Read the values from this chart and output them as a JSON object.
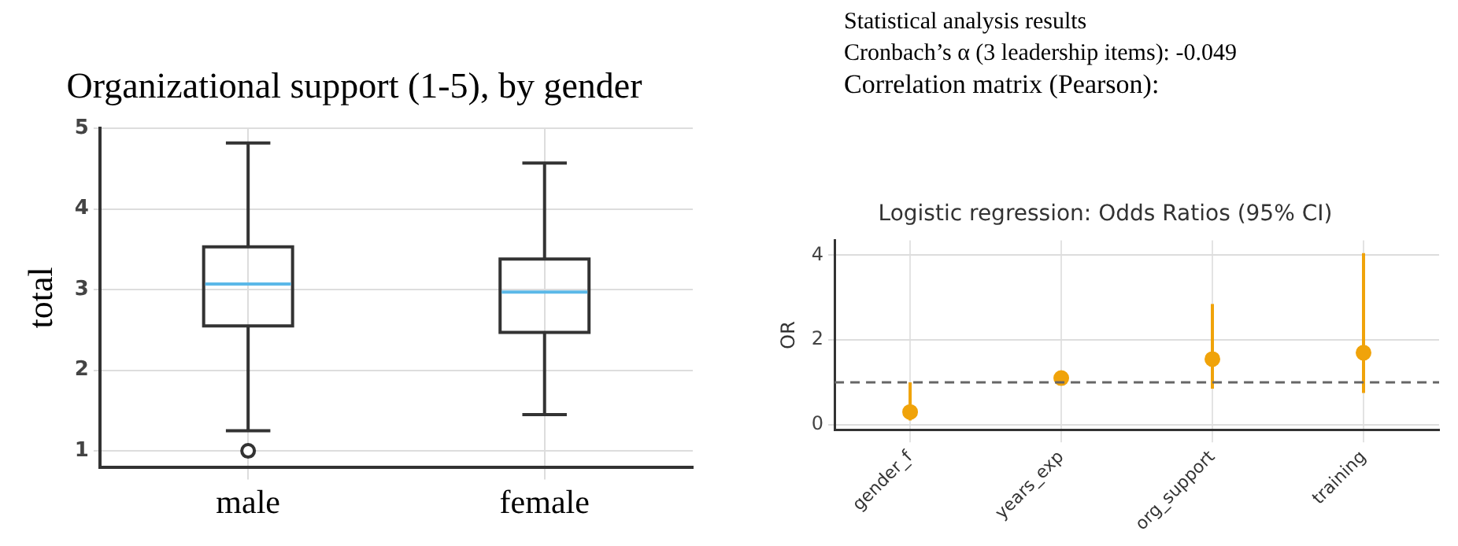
{
  "chart_data": [
    {
      "type": "box",
      "title": "Organizational support (1-5), by gender",
      "ylabel": "total",
      "categories": [
        "male",
        "female"
      ],
      "series": [
        {
          "color": "#333333",
          "boxes": [
            {
              "low": 1.25,
              "q1": 2.55,
              "median": 3.07,
              "q3": 3.53,
              "high": 4.82,
              "outliers": [
                1.0
              ]
            },
            {
              "low": 1.45,
              "q1": 2.47,
              "median": 2.97,
              "q3": 3.38,
              "high": 4.57
            }
          ]
        }
      ],
      "ylim": [
        0.8,
        5
      ],
      "yticks": [
        1,
        2,
        3,
        4,
        5
      ],
      "grid": true,
      "legend": false,
      "marker": "circle"
    },
    {
      "type": "other",
      "title": "Statistical analysis results",
      "annotations": [
        "Cronbach’s α (3 leadership items): -0.049",
        "Correlation matrix (Pearson):"
      ]
    },
    {
      "type": "scatter",
      "title": "Logistic regression: Odds Ratios (95% CI)",
      "ylabel": "OR",
      "categories": [
        "gender_f",
        "years_exp",
        "org_support",
        "training"
      ],
      "series": [
        {
          "color": "#f0a30a",
          "values": [
            0.3,
            1.1,
            1.55,
            1.7
          ],
          "errors": [
            [
              0.1,
              1.0
            ],
            null,
            [
              0.85,
              2.85
            ],
            [
              0.75,
              4.05
            ]
          ]
        }
      ],
      "ylim": [
        -0.12,
        4.35
      ],
      "yticks": [
        0,
        2,
        4
      ],
      "grid": true,
      "legend": false,
      "marker": "circle",
      "ref_lines": [
        {
          "axis": "y",
          "value": 1,
          "color": "#666666",
          "line_style": "dashed"
        }
      ]
    }
  ]
}
